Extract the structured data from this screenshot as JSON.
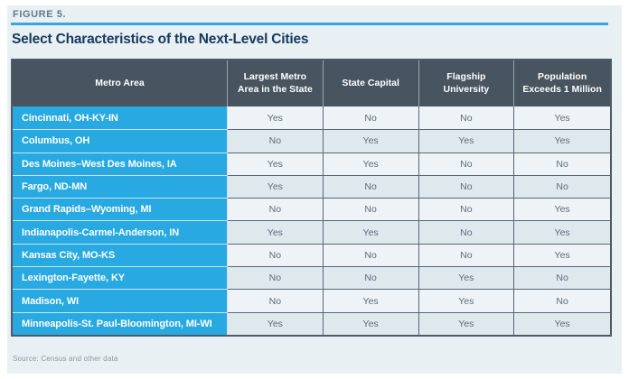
{
  "figure": {
    "label": "FIGURE 5.",
    "title": "Select Characteristics of the Next-Level Cities",
    "source": "Source: Census and other data"
  },
  "chart_data": {
    "type": "table",
    "title": "Select Characteristics of the Next-Level Cities",
    "columns": [
      "Metro Area",
      "Largest Metro\nArea in the State",
      "State Capital",
      "Flagship\nUniversity",
      "Population\nExceeds 1 Million"
    ],
    "rows": [
      {
        "metro": "Cincinnati, OH-KY-IN",
        "values": [
          "Yes",
          "No",
          "No",
          "Yes"
        ]
      },
      {
        "metro": "Columbus, OH",
        "values": [
          "No",
          "Yes",
          "Yes",
          "Yes"
        ]
      },
      {
        "metro": "Des Moines–West Des Moines, IA",
        "values": [
          "Yes",
          "Yes",
          "No",
          "No"
        ]
      },
      {
        "metro": "Fargo, ND-MN",
        "values": [
          "Yes",
          "No",
          "No",
          "No"
        ]
      },
      {
        "metro": "Grand Rapids–Wyoming, MI",
        "values": [
          "No",
          "No",
          "No",
          "Yes"
        ]
      },
      {
        "metro": "Indianapolis-Carmel-Anderson, IN",
        "values": [
          "Yes",
          "Yes",
          "No",
          "Yes"
        ]
      },
      {
        "metro": "Kansas City, MO-KS",
        "values": [
          "No",
          "No",
          "No",
          "Yes"
        ]
      },
      {
        "metro": "Lexington-Fayette, KY",
        "values": [
          "No",
          "No",
          "Yes",
          "No"
        ]
      },
      {
        "metro": "Madison, WI",
        "values": [
          "No",
          "Yes",
          "Yes",
          "No"
        ]
      },
      {
        "metro": "Minneapolis-St. Paul-Bloomington, MI-WI",
        "values": [
          "Yes",
          "Yes",
          "Yes",
          "Yes"
        ]
      }
    ]
  },
  "colors": {
    "accent_blue": "#29a9e1",
    "rule_blue": "#3aa5d8",
    "header_bg": "#48545f",
    "title_navy": "#163a60",
    "row_odd": "#edf3f6",
    "row_even": "#dfe8ed",
    "grid_dark": "#5a6671",
    "panel_bg": "#e9f0f4"
  }
}
